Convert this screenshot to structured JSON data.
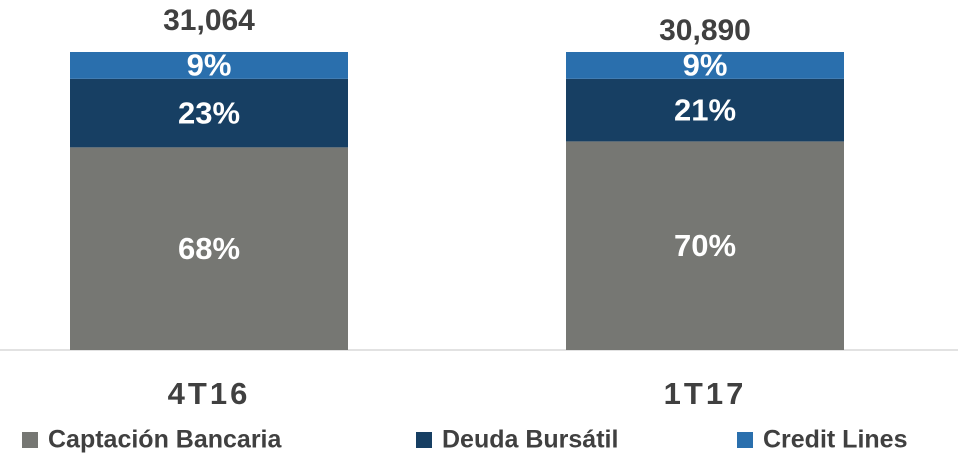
{
  "chart_data": {
    "type": "stacked_bar",
    "categories": [
      "4T16",
      "1T17"
    ],
    "series": [
      {
        "name": "Captación Bancaria",
        "color": "#767773",
        "values": [
          68,
          70
        ],
        "value_labels": [
          "68%",
          "70%"
        ]
      },
      {
        "name": "Deuda Bursátil",
        "color": "#173f63",
        "values": [
          23,
          21
        ],
        "value_labels": [
          "23%",
          "21%"
        ]
      },
      {
        "name": "Credit Lines",
        "color": "#2a6fad",
        "values": [
          9,
          9
        ],
        "value_labels": [
          "9%",
          "9%"
        ]
      }
    ],
    "totals": [
      {
        "value": 31064,
        "label": "31,064"
      },
      {
        "value": 30890,
        "label": "30,890"
      }
    ]
  }
}
